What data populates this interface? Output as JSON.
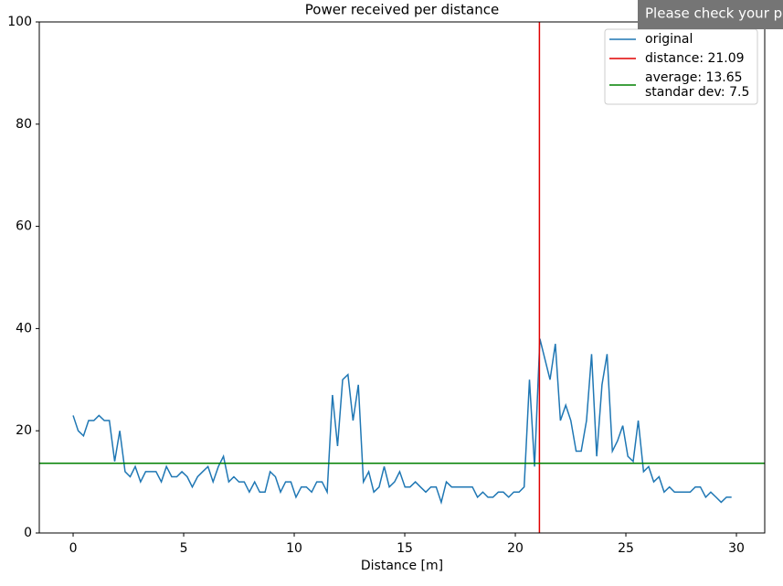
{
  "chart_data": {
    "type": "line",
    "title": "Power received per distance",
    "xlabel": "Distance [m]",
    "x": [
      0,
      0.23,
      0.47,
      0.7,
      0.94,
      1.17,
      1.41,
      1.64,
      1.88,
      2.11,
      2.35,
      2.58,
      2.81,
      3.05,
      3.28,
      3.52,
      3.75,
      3.99,
      4.22,
      4.46,
      4.69,
      4.92,
      5.16,
      5.39,
      5.63,
      5.86,
      6.1,
      6.33,
      6.57,
      6.8,
      7.04,
      7.27,
      7.5,
      7.74,
      7.97,
      8.21,
      8.44,
      8.68,
      8.91,
      9.15,
      9.38,
      9.61,
      9.85,
      10.08,
      10.32,
      10.55,
      10.79,
      11.02,
      11.26,
      11.49,
      11.73,
      11.96,
      12.19,
      12.43,
      12.66,
      12.9,
      13.13,
      13.37,
      13.6,
      13.84,
      14.07,
      14.3,
      14.54,
      14.77,
      15.01,
      15.24,
      15.48,
      15.71,
      15.95,
      16.18,
      16.42,
      16.65,
      16.88,
      17.12,
      17.35,
      17.59,
      17.82,
      18.06,
      18.29,
      18.53,
      18.76,
      18.99,
      19.23,
      19.46,
      19.7,
      19.93,
      20.17,
      20.4,
      20.64,
      20.87,
      21.11,
      21.34,
      21.57,
      21.81,
      22.04,
      22.28,
      22.51,
      22.75,
      22.98,
      23.22,
      23.45,
      23.68,
      23.92,
      24.15,
      24.39,
      24.62,
      24.86,
      25.09,
      25.33,
      25.56,
      25.8,
      26.03,
      26.26,
      26.5,
      26.73,
      26.97,
      27.2,
      27.44,
      27.67,
      27.91,
      28.14,
      28.37,
      28.61,
      28.84,
      29.08,
      29.31,
      29.55,
      29.78
    ],
    "series": [
      {
        "name": "original",
        "color": "#1f77b4",
        "values": [
          23,
          20,
          19,
          22,
          22,
          23,
          22,
          22,
          14,
          20,
          12,
          11,
          13,
          10,
          12,
          12,
          12,
          10,
          13,
          11,
          11,
          12,
          11,
          9,
          11,
          12,
          13,
          10,
          13,
          15,
          10,
          11,
          10,
          10,
          8,
          10,
          8,
          8,
          12,
          11,
          8,
          10,
          10,
          7,
          9,
          9,
          8,
          10,
          10,
          8,
          27,
          17,
          30,
          31,
          22,
          29,
          10,
          12,
          8,
          9,
          13,
          9,
          10,
          12,
          9,
          9,
          10,
          9,
          8,
          9,
          9,
          6,
          10,
          9,
          9,
          9,
          9,
          9,
          7,
          8,
          7,
          7,
          8,
          8,
          7,
          8,
          8,
          9,
          30,
          13,
          38,
          34,
          30,
          37,
          22,
          25,
          22,
          16,
          16,
          22,
          35,
          15,
          29,
          35,
          16,
          18,
          21,
          15,
          14,
          22,
          12,
          13,
          10,
          11,
          8,
          9,
          8,
          8,
          8,
          8,
          9,
          9,
          7,
          8,
          7,
          6,
          7,
          7
        ]
      }
    ],
    "vline": {
      "value": 21.09,
      "color": "#e00000",
      "label": "distance: 21.09"
    },
    "hline": {
      "value": 13.65,
      "color": "#008000",
      "label": [
        "average: 13.65",
        " standar dev: 7.5"
      ]
    },
    "xlim": [
      -1.53,
      31.28
    ],
    "xticks": [
      0,
      5,
      10,
      15,
      20,
      25,
      30
    ],
    "ylim": [
      0,
      100
    ],
    "yticks": [
      0,
      20,
      40,
      60,
      80,
      100
    ],
    "grid": false,
    "legend": "upper right"
  },
  "toast": {
    "text": "Please check your pov"
  }
}
